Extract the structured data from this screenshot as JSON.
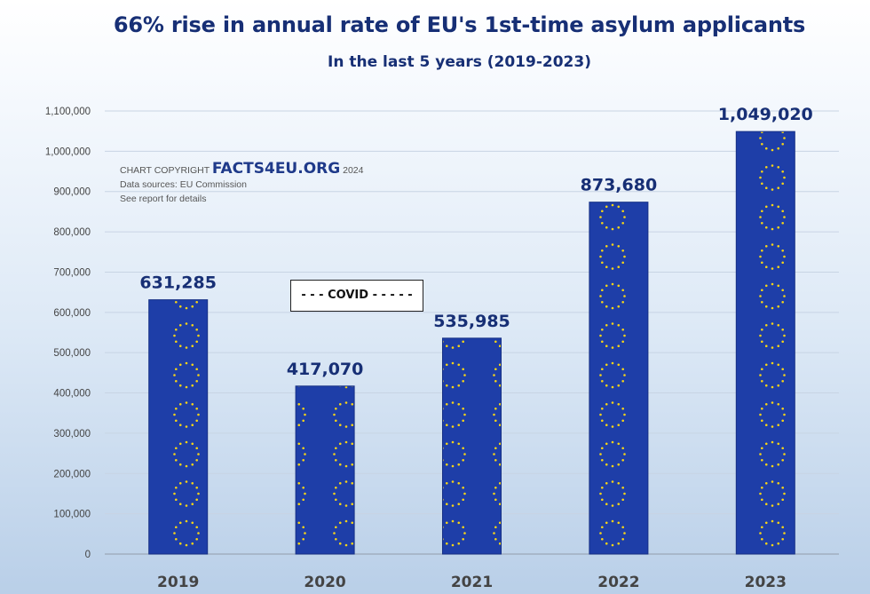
{
  "chart_data": {
    "type": "bar",
    "title": "66% rise in annual rate of EU's 1st-time asylum applicants",
    "subtitle": "In the last 5 years (2019-2023)",
    "categories": [
      "2019",
      "2020",
      "2021",
      "2022",
      "2023"
    ],
    "values": [
      631285,
      417070,
      535985,
      873680,
      1049020
    ],
    "value_labels": [
      "631,285",
      "417,070",
      "535,985",
      "873,680",
      "1,049,020"
    ],
    "xlabel": "",
    "ylabel": "",
    "ylim": [
      0,
      1100000
    ],
    "yticks": [
      0,
      100000,
      200000,
      300000,
      400000,
      500000,
      600000,
      700000,
      800000,
      900000,
      1000000,
      1100000
    ],
    "ytick_labels": [
      "0",
      "100,000",
      "200,000",
      "300,000",
      "400,000",
      "500,000",
      "600,000",
      "700,000",
      "800,000",
      "900,000",
      "1,000,000",
      "1,100,000"
    ],
    "grid": true,
    "annotations": [
      "- - - COVID - - - - -"
    ],
    "colors": {
      "bar": "#1e3ea8",
      "star": "#f7d417",
      "value_label": "#172f75",
      "axis_label": "#444444",
      "grid": "#c8d4e4"
    }
  },
  "copyright": {
    "prefix": "CHART COPYRIGHT",
    "brand": "FACTS4EU.ORG",
    "year": "2024",
    "sources": "Data sources: EU Commission",
    "note": "See report for details"
  }
}
